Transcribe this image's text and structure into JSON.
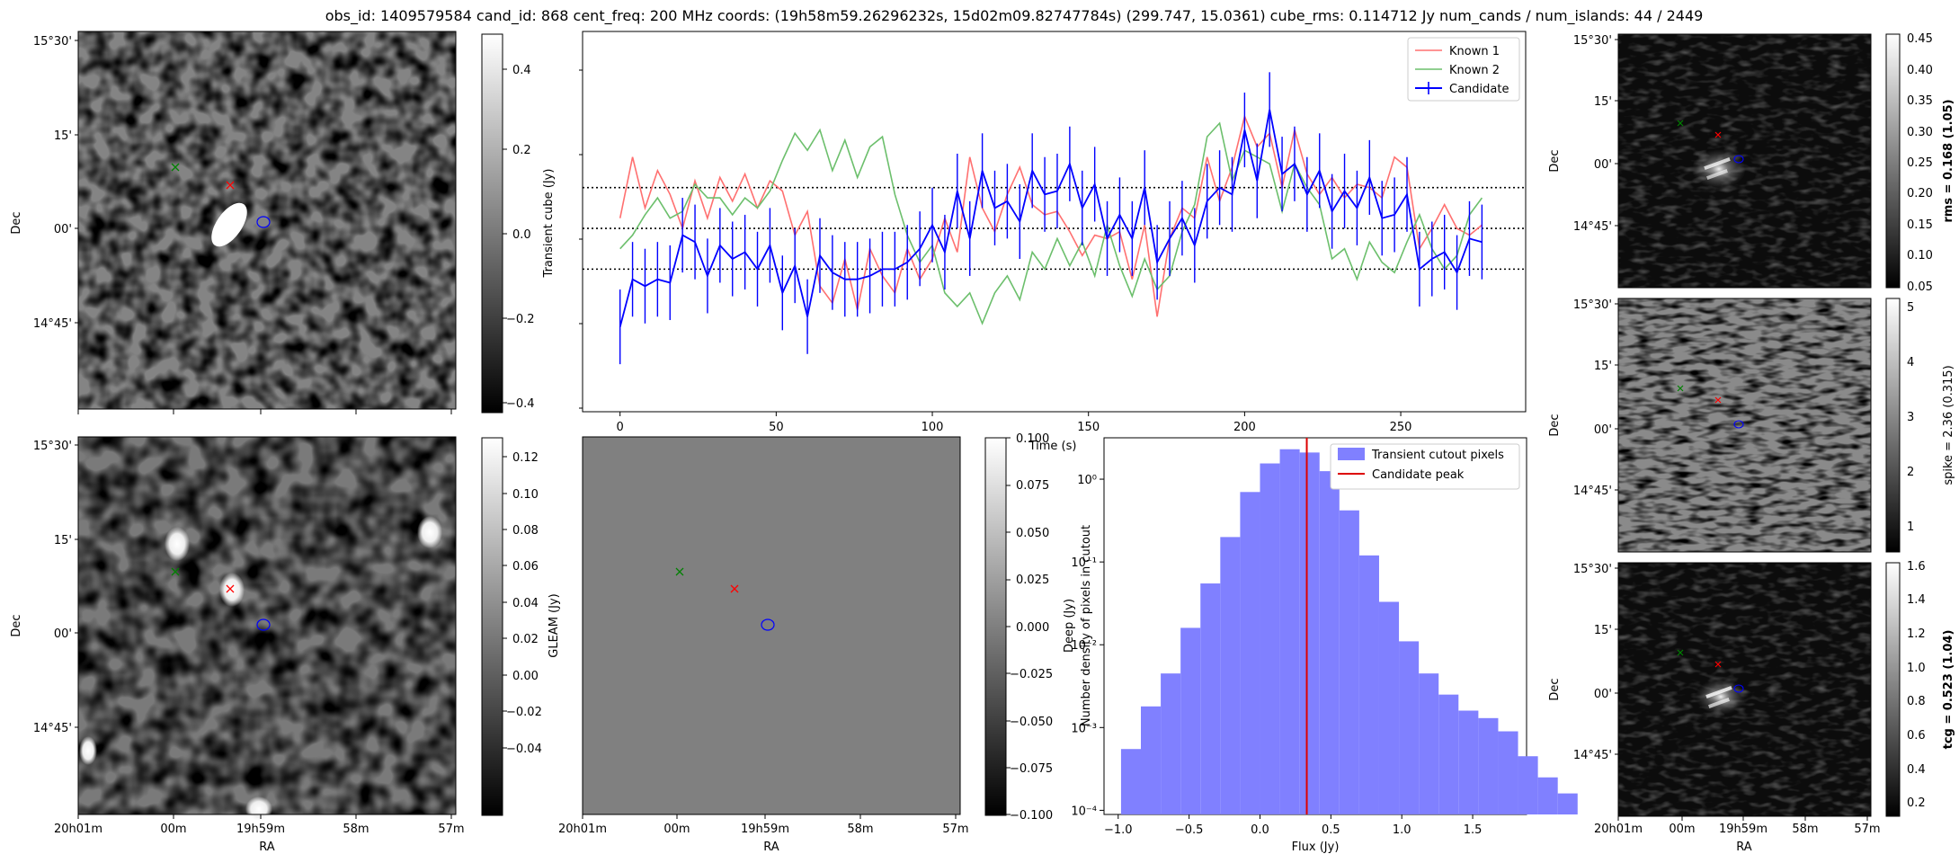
{
  "title": "obs_id: 1409579584 cand_id: 868 cent_freq: 200 MHz coords: (19h58m59.26296232s, 15d02m09.82747784s) (299.747, 15.0361) cube_rms: 0.114712 Jy num_cands / num_islands: 44 / 2449",
  "sky": {
    "ra_ticks": [
      "20h01m",
      "00m",
      "19h59m",
      "58m",
      "57m"
    ],
    "dec_ticks": [
      "15°30'",
      "15'",
      "00'",
      "14°45'"
    ],
    "xlabel": "RA",
    "ylabel": "Dec"
  },
  "panels": {
    "transient": {
      "cbar_label": "Transient cube (Jy)",
      "cbar_ticks": [
        "0.4",
        "0.2",
        "0.0",
        "−0.2",
        "−0.4"
      ],
      "vmin": -0.42,
      "vmax": 0.48
    },
    "deep": {
      "cbar_label": "Deep (Jy)",
      "cbar_ticks": [
        "0.12",
        "0.10",
        "0.08",
        "0.06",
        "0.04",
        "0.02",
        "0.00",
        "−0.02",
        "−0.04"
      ],
      "vmin": -0.05,
      "vmax": 0.125
    },
    "gleam": {
      "cbar_label": "GLEAM (Jy)",
      "cbar_ticks": [
        "0.100",
        "0.075",
        "0.050",
        "0.025",
        "0.000",
        "−0.025",
        "−0.050",
        "−0.075",
        "−0.100"
      ],
      "vmin": -0.1,
      "vmax": 0.1
    },
    "rms": {
      "cbar_label": "rms = 0.168 (1.05)",
      "cbar_ticks": [
        "0.45",
        "0.40",
        "0.35",
        "0.30",
        "0.25",
        "0.20",
        "0.15",
        "0.10",
        "0.05"
      ],
      "vmin": 0.045,
      "vmax": 0.455
    },
    "spike": {
      "cbar_label": "spike = 2.36 (0.315)",
      "cbar_ticks": [
        "5",
        "4",
        "3",
        "2",
        "1"
      ],
      "vmin": 0.5,
      "vmax": 5.1
    },
    "tcg": {
      "cbar_label": "tcg = 0.523 (1.04)",
      "cbar_ticks": [
        "1.6",
        "1.4",
        "1.2",
        "1.0",
        "0.8",
        "0.6",
        "0.4",
        "0.2"
      ],
      "vmin": 0.12,
      "vmax": 1.62
    }
  },
  "colors": {
    "candidate": "#0000ff",
    "known1": "#ff7070",
    "known2": "#6cbf6c",
    "hist": "#8080ff",
    "peak": "#dd0000",
    "marker_red": "#ff0000",
    "marker_green": "#008000"
  },
  "chart_data": [
    {
      "type": "line",
      "title": "",
      "xlabel": "Time (s)",
      "ylabel": "",
      "xlim": [
        -12,
        290
      ],
      "ylim": [
        -2.7,
        2.9
      ],
      "x_ticks": [
        "0",
        "50",
        "100",
        "150",
        "200",
        "250"
      ],
      "x_tick_values": [
        0,
        50,
        100,
        150,
        200,
        250
      ],
      "hlines": [
        0.6,
        0.0,
        -0.6
      ],
      "legend": [
        "Known 1",
        "Known 2",
        "Candidate"
      ],
      "legend_position": "top-right",
      "x": [
        0,
        4,
        8,
        12,
        16,
        20,
        24,
        28,
        32,
        36,
        40,
        44,
        48,
        52,
        56,
        60,
        64,
        68,
        72,
        76,
        80,
        84,
        88,
        92,
        96,
        100,
        104,
        108,
        112,
        116,
        120,
        124,
        128,
        132,
        136,
        140,
        144,
        148,
        152,
        156,
        160,
        164,
        168,
        172,
        176,
        180,
        184,
        188,
        192,
        196,
        200,
        204,
        208,
        212,
        216,
        220,
        224,
        228,
        232,
        236,
        240,
        244,
        248,
        252,
        256,
        260,
        264,
        268,
        272,
        276
      ],
      "series": [
        {
          "name": "Known 1",
          "values": [
            0.15,
            1.05,
            0.3,
            0.85,
            0.5,
            0.0,
            0.7,
            0.15,
            0.75,
            0.4,
            0.8,
            0.3,
            0.7,
            0.55,
            -0.1,
            0.25,
            -0.85,
            -1.1,
            -0.45,
            -1.2,
            -0.3,
            -0.7,
            -0.95,
            -0.3,
            -0.75,
            -0.45,
            0.15,
            -0.35,
            1.05,
            0.3,
            -0.05,
            0.5,
            0.9,
            0.35,
            0.2,
            0.25,
            -0.05,
            -0.4,
            -0.1,
            -0.15,
            -0.05,
            -0.75,
            0.05,
            -1.3,
            -0.15,
            0.3,
            0.15,
            1.05,
            0.4,
            0.9,
            1.65,
            1.2,
            1.4,
            0.6,
            1.45,
            0.8,
            0.5,
            0.75,
            0.45,
            0.65,
            0.6,
            0.45,
            1.05,
            0.9,
            -0.3,
            0.0,
            0.35,
            0.0,
            -0.1,
            0.05
          ]
        },
        {
          "name": "Known 2",
          "values": [
            -0.3,
            -0.1,
            0.2,
            0.45,
            0.15,
            0.25,
            0.65,
            0.45,
            0.45,
            0.2,
            0.45,
            0.3,
            0.55,
            1.0,
            1.4,
            1.15,
            1.45,
            0.85,
            1.3,
            0.75,
            1.2,
            1.35,
            0.5,
            -0.1,
            -0.5,
            -0.25,
            -0.95,
            -1.15,
            -0.95,
            -1.4,
            -0.95,
            -0.7,
            -1.05,
            -0.35,
            -0.6,
            -0.15,
            -0.55,
            -0.2,
            -0.7,
            0.05,
            -0.55,
            -1.0,
            -0.45,
            -0.9,
            -0.7,
            -0.05,
            0.35,
            1.35,
            1.55,
            0.7,
            1.15,
            1.05,
            0.95,
            0.25,
            0.95,
            0.6,
            0.35,
            -0.45,
            -0.3,
            -0.75,
            -0.2,
            -0.5,
            -0.65,
            -0.2,
            0.2,
            -0.3,
            -0.6,
            -0.4,
            0.2,
            0.45
          ]
        },
        {
          "name": "Candidate",
          "values": [
            -1.45,
            -0.75,
            -0.85,
            -0.75,
            -0.8,
            -0.1,
            -0.2,
            -0.7,
            -0.25,
            -0.45,
            -0.35,
            -0.6,
            -0.25,
            -0.95,
            -0.55,
            -1.3,
            -0.4,
            -0.65,
            -0.75,
            -0.75,
            -0.7,
            -0.6,
            -0.6,
            -0.5,
            -0.3,
            0.05,
            -0.35,
            0.55,
            -0.15,
            0.85,
            0.3,
            0.4,
            0.1,
            0.85,
            0.5,
            0.55,
            0.95,
            0.3,
            0.65,
            -0.15,
            0.2,
            -0.15,
            0.6,
            -0.5,
            -0.15,
            0.15,
            -0.25,
            0.4,
            0.6,
            0.5,
            1.45,
            0.7,
            1.75,
            0.8,
            0.95,
            0.5,
            0.85,
            0.25,
            0.55,
            0.3,
            0.75,
            0.15,
            0.2,
            0.5,
            -0.6,
            -0.45,
            -0.35,
            -0.65,
            -0.15,
            -0.2
          ]
        },
        {
          "name": "Candidate error",
          "values": [
            0.55,
            0.55,
            0.55,
            0.55,
            0.55,
            0.55,
            0.55,
            0.55,
            0.55,
            0.55,
            0.55,
            0.55,
            0.55,
            0.55,
            0.55,
            0.55,
            0.55,
            0.55,
            0.55,
            0.55,
            0.55,
            0.55,
            0.55,
            0.55,
            0.55,
            0.55,
            0.55,
            0.55,
            0.55,
            0.55,
            0.55,
            0.55,
            0.55,
            0.55,
            0.55,
            0.55,
            0.55,
            0.55,
            0.55,
            0.55,
            0.55,
            0.55,
            0.55,
            0.55,
            0.55,
            0.55,
            0.55,
            0.55,
            0.55,
            0.55,
            0.55,
            0.55,
            0.55,
            0.55,
            0.55,
            0.55,
            0.55,
            0.55,
            0.55,
            0.55,
            0.55,
            0.55,
            0.55,
            0.55,
            0.55,
            0.55,
            0.55,
            0.55,
            0.55,
            0.55
          ]
        }
      ]
    },
    {
      "type": "bar",
      "title": "",
      "xlabel": "Flux (Jy)",
      "ylabel": "Number density of pixels in cutout",
      "yscale": "log",
      "xlim": [
        -1.1,
        1.88
      ],
      "ylim_log10": [
        -4.05,
        0.5
      ],
      "x_ticks": [
        "−1.0",
        "−0.5",
        "0.0",
        "0.5",
        "1.0",
        "1.5"
      ],
      "x_tick_values": [
        -1.0,
        -0.5,
        0.0,
        0.5,
        1.0,
        1.5
      ],
      "y_ticks": [
        "10⁰",
        "10⁻¹",
        "10⁻²",
        "10⁻³",
        "10⁻⁴"
      ],
      "y_tick_values": [
        1,
        0.1,
        0.01,
        0.001,
        0.0001
      ],
      "legend": [
        "Transient cutout pixels",
        "Candidate peak"
      ],
      "legend_position": "top-right",
      "bin_start": -0.98,
      "bin_width": 0.14,
      "values": [
        0.00055,
        0.0018,
        0.0045,
        0.016,
        0.055,
        0.2,
        0.7,
        1.55,
        2.3,
        2.1,
        1.25,
        0.42,
        0.12,
        0.033,
        0.011,
        0.0045,
        0.0025,
        0.0016,
        0.0013,
        0.0009,
        0.00045,
        0.00025,
        0.00016
      ],
      "candidate_peak": 0.33
    }
  ]
}
